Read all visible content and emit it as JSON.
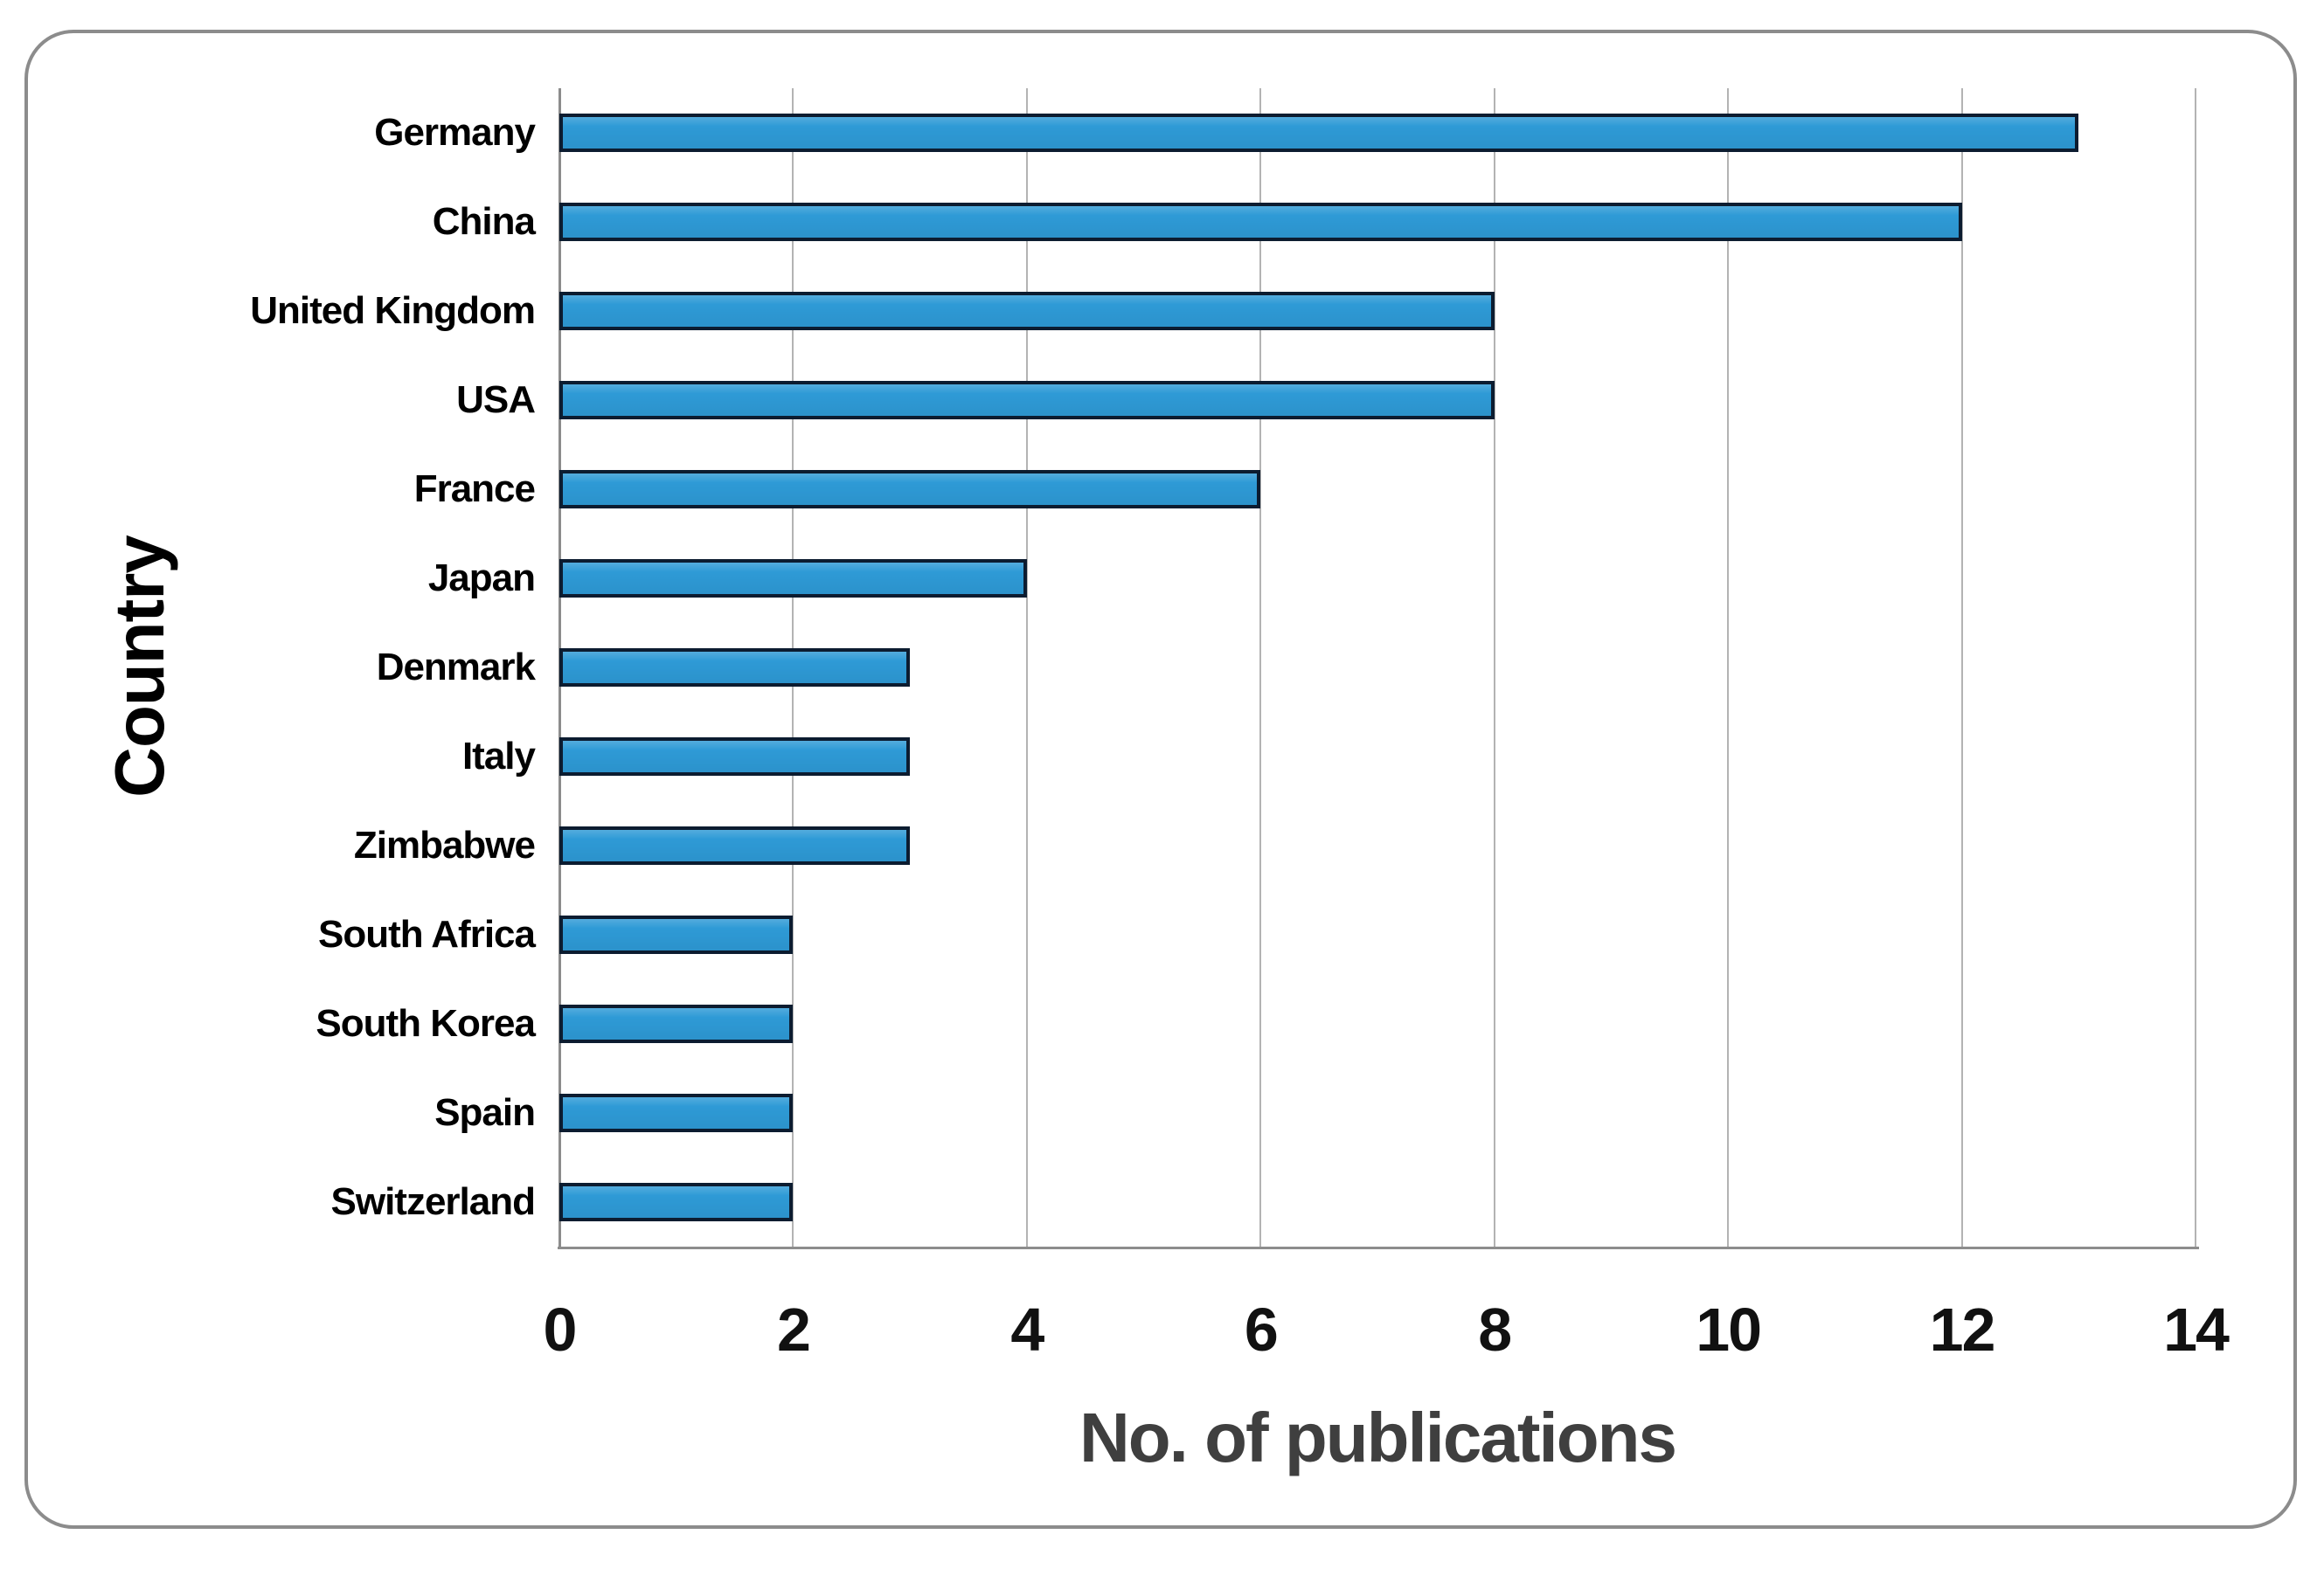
{
  "figure": {
    "accent_color": "#2E9AD6",
    "bar_border_color": "#0C1C30",
    "frame_border_color": "#8C8C8C",
    "gridline_color": "#B3B3B3",
    "axis_line_color": "#8C8C8C",
    "tick_text_color": "#111111",
    "category_text_color": "#000000",
    "xlabel_text_color": "#3F3F3F"
  },
  "chart_data": {
    "type": "bar",
    "orientation": "horizontal",
    "title": "",
    "xlabel": "No. of publications",
    "ylabel": "Country",
    "categories": [
      "Germany",
      "China",
      "United Kingdom",
      "USA",
      "France",
      "Japan",
      "Denmark",
      "Italy",
      "Zimbabwe",
      "South Africa",
      "South Korea",
      "Spain",
      "Switzerland"
    ],
    "values": [
      13,
      12,
      8,
      8,
      6,
      4,
      3,
      3,
      3,
      2,
      2,
      2,
      2
    ],
    "xlim": [
      0,
      14
    ],
    "xticks": [
      0,
      2,
      4,
      6,
      8,
      10,
      12,
      14
    ],
    "grid": true,
    "legend_position": "none"
  }
}
